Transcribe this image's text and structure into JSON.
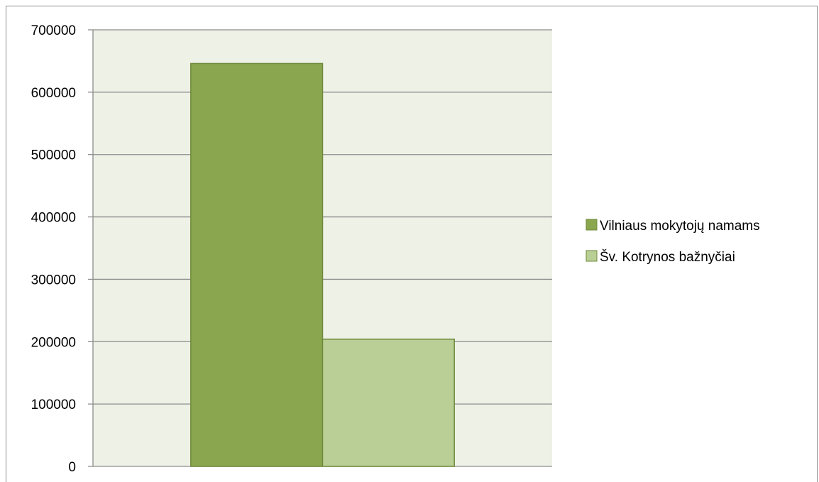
{
  "chart_data": {
    "type": "bar",
    "title": "",
    "xlabel": "",
    "ylabel": "",
    "ylim": [
      0,
      700000
    ],
    "yticks": [
      0,
      100000,
      200000,
      300000,
      400000,
      500000,
      600000,
      700000
    ],
    "grid": true,
    "legend_position": "right",
    "categories": [
      ""
    ],
    "series": [
      {
        "name": "Vilniaus mokytojų namams",
        "values": [
          646000
        ],
        "color": "#8aa74f"
      },
      {
        "name": "Šv. Kotrynos bažnyčiai",
        "values": [
          204000
        ],
        "color": "#b9cf95"
      }
    ],
    "plot_background": "#eef1e6",
    "gridline_color": "#8c8c8c"
  }
}
